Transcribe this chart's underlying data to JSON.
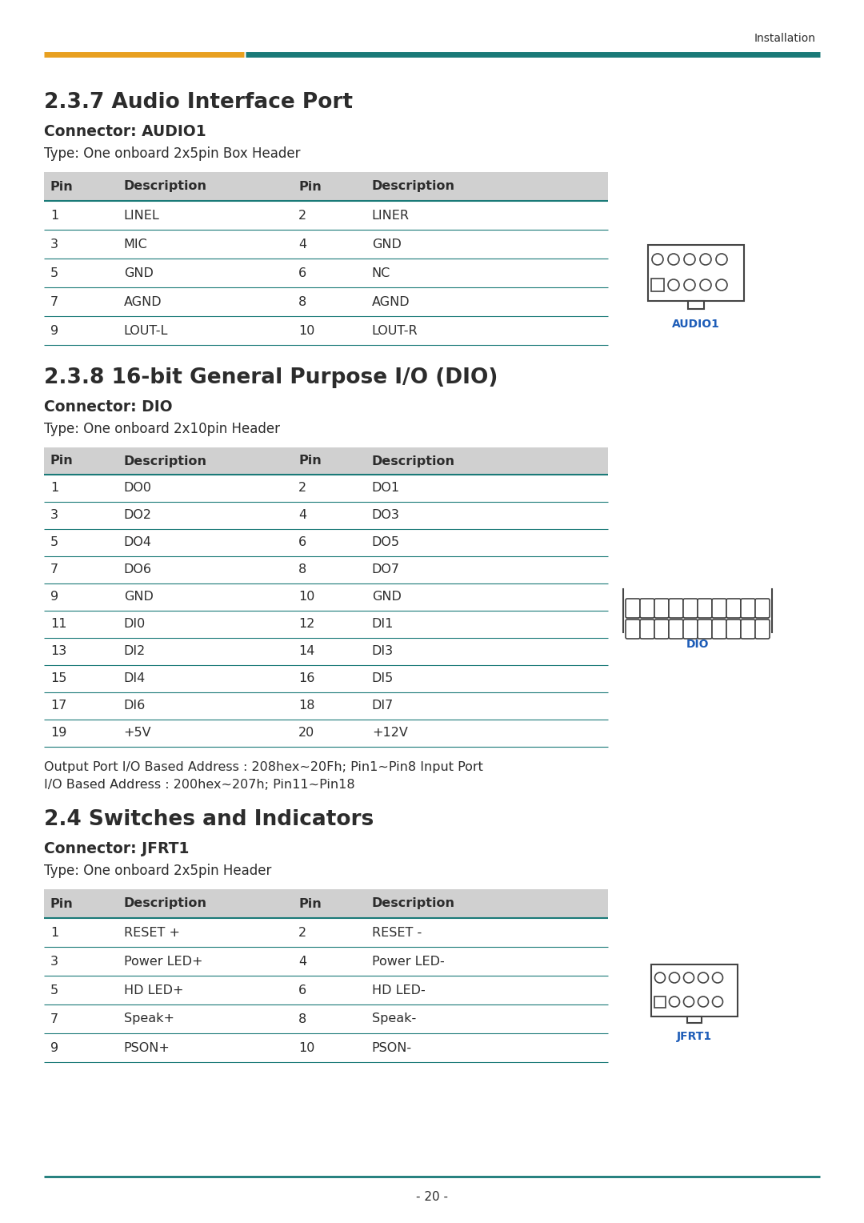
{
  "page_number": "- 20 -",
  "header_text": "Installation",
  "orange_color": "#E8A020",
  "teal_color": "#1A7A78",
  "blue_color": "#1E5DB8",
  "text_color": "#2C2C2C",
  "header_bg": "#D0D0D0",
  "section1_title": "2.3.7 Audio Interface Port",
  "section1_connector": "Connector: AUDIO1",
  "section1_type": "Type: One onboard 2x5pin Box Header",
  "section1_headers": [
    "Pin",
    "Description",
    "Pin",
    "Description"
  ],
  "section1_rows": [
    [
      "1",
      "LINEL",
      "2",
      "LINER"
    ],
    [
      "3",
      "MIC",
      "4",
      "GND"
    ],
    [
      "5",
      "GND",
      "6",
      "NC"
    ],
    [
      "7",
      "AGND",
      "8",
      "AGND"
    ],
    [
      "9",
      "LOUT-L",
      "10",
      "LOUT-R"
    ]
  ],
  "section1_image_label": "AUDIO1",
  "section2_title": "2.3.8 16-bit General Purpose I/O (DIO)",
  "section2_connector": "Connector: DIO",
  "section2_type": "Type: One onboard 2x10pin Header",
  "section2_headers": [
    "Pin",
    "Description",
    "Pin",
    "Description"
  ],
  "section2_rows": [
    [
      "1",
      "DO0",
      "2",
      "DO1"
    ],
    [
      "3",
      "DO2",
      "4",
      "DO3"
    ],
    [
      "5",
      "DO4",
      "6",
      "DO5"
    ],
    [
      "7",
      "DO6",
      "8",
      "DO7"
    ],
    [
      "9",
      "GND",
      "10",
      "GND"
    ],
    [
      "11",
      "DI0",
      "12",
      "DI1"
    ],
    [
      "13",
      "DI2",
      "14",
      "DI3"
    ],
    [
      "15",
      "DI4",
      "16",
      "DI5"
    ],
    [
      "17",
      "DI6",
      "18",
      "DI7"
    ],
    [
      "19",
      "+5V",
      "20",
      "+12V"
    ]
  ],
  "section2_image_label": "DIO",
  "section2_note1": "Output Port I/O Based Address : 208hex~20Fh; Pin1~Pin8 Input Port",
  "section2_note2": "I/O Based Address : 200hex~207h; Pin11~Pin18",
  "section3_title": "2.4 Switches and Indicators",
  "section3_connector": "Connector: JFRT1",
  "section3_type": "Type: One onboard 2x5pin Header",
  "section3_headers": [
    "Pin",
    "Description",
    "Pin",
    "Description"
  ],
  "section3_rows": [
    [
      "1",
      "RESET +",
      "2",
      "RESET -"
    ],
    [
      "3",
      "Power LED+",
      "4",
      "Power LED-"
    ],
    [
      "5",
      "HD LED+",
      "6",
      "HD LED-"
    ],
    [
      "7",
      "Speak+",
      "8",
      "Speak-"
    ],
    [
      "9",
      "PSON+",
      "10",
      "PSON-"
    ]
  ],
  "section3_image_label": "JFRT1"
}
